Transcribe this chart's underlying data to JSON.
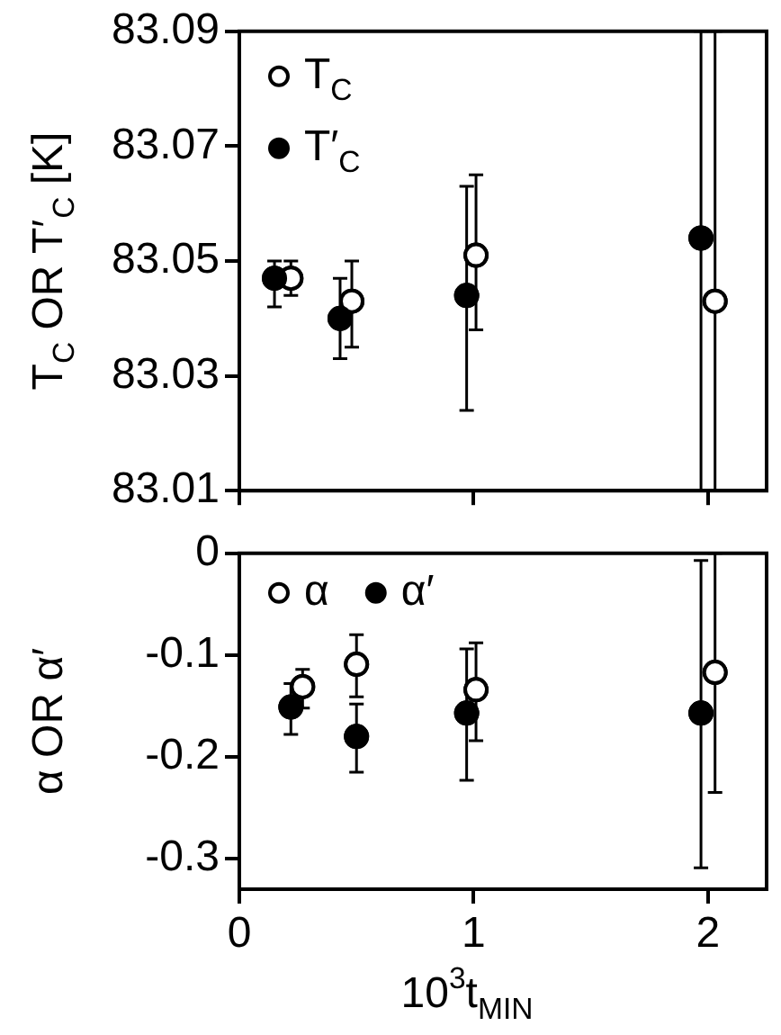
{
  "chart_data": [
    {
      "type": "scatter",
      "ylabel": "T$_{C}$ OR T′$_{C}$ [K]",
      "xlim": [
        0,
        2.25
      ],
      "xticks": [
        0,
        1,
        2
      ],
      "ylim": [
        83.01,
        83.09
      ],
      "yticks": [
        83.01,
        83.03,
        83.05,
        83.07,
        83.09
      ],
      "tick_labels": "y",
      "grid": false,
      "legend": "top left",
      "marker": "circle",
      "series": [
        {
          "name": "T$_{C}$",
          "color": "#000000",
          "x": [
            0.22,
            0.48,
            1.01,
            2.03
          ],
          "values": [
            83.047,
            83.043,
            83.051,
            83.043
          ],
          "errors": [
            [
              83.044,
              83.05
            ],
            [
              83.035,
              83.05
            ],
            [
              83.038,
              83.065
            ],
            [
              83.01,
              83.09
            ]
          ]
        },
        {
          "name": "T′$_{C}$",
          "color": "#000000",
          "x": [
            0.15,
            0.43,
            0.97,
            1.97
          ],
          "values": [
            83.047,
            83.04,
            83.044,
            83.054
          ],
          "errors": [
            [
              83.042,
              83.05
            ],
            [
              83.033,
              83.047
            ],
            [
              83.024,
              83.063
            ],
            [
              83.01,
              83.09
            ]
          ]
        }
      ]
    },
    {
      "type": "scatter",
      "xlabel": "10$^{3}$t$_{MIN}$",
      "ylabel": "α OR α′",
      "xlim": [
        0,
        2.25
      ],
      "xticks": [
        0,
        1,
        2
      ],
      "ylim": [
        -0.33,
        0
      ],
      "yticks": [
        0,
        -0.1,
        -0.2,
        -0.3
      ],
      "grid": false,
      "legend": "top left",
      "marker": "circle",
      "series": [
        {
          "name": "α",
          "color": "#000000",
          "x": [
            0.27,
            0.5,
            1.01,
            2.03
          ],
          "values": [
            -0.131,
            -0.109,
            -0.134,
            -0.117
          ],
          "errors": [
            [
              -0.152,
              -0.114
            ],
            [
              -0.141,
              -0.08
            ],
            [
              -0.184,
              -0.088
            ],
            [
              -0.235,
              0
            ]
          ]
        },
        {
          "name": "α′",
          "color": "#000000",
          "x": [
            0.22,
            0.5,
            0.97,
            1.97
          ],
          "values": [
            -0.151,
            -0.18,
            -0.157,
            -0.157
          ],
          "errors": [
            [
              -0.178,
              -0.128
            ],
            [
              -0.215,
              -0.148
            ],
            [
              -0.223,
              -0.094
            ],
            [
              -0.309,
              -0.007
            ]
          ]
        }
      ]
    }
  ]
}
